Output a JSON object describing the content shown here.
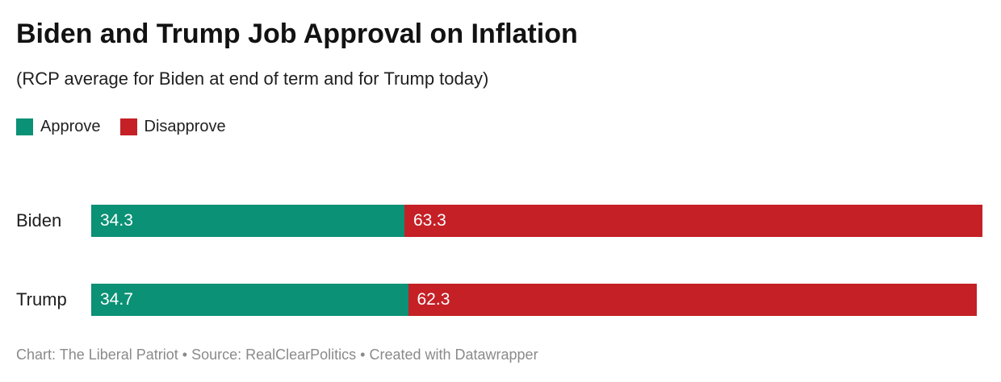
{
  "header": {
    "title": "Biden and Trump Job Approval on Inflation",
    "subtitle": "(RCP average for Biden at end of term and for Trump today)"
  },
  "legend": [
    {
      "label": "Approve",
      "color": "#0b9175"
    },
    {
      "label": "Disapprove",
      "color": "#c42026"
    }
  ],
  "chart_data": {
    "type": "bar",
    "orientation": "horizontal",
    "stacked": true,
    "title": "Biden and Trump Job Approval on Inflation",
    "subtitle": "(RCP average for Biden at end of term and for Trump today)",
    "categories": [
      "Biden",
      "Trump"
    ],
    "series": [
      {
        "name": "Approve",
        "color": "#0b9175",
        "values": [
          34.3,
          34.7
        ]
      },
      {
        "name": "Disapprove",
        "color": "#c42026",
        "values": [
          63.3,
          62.3
        ]
      }
    ],
    "xlim": [
      0,
      97.6
    ],
    "xlabel": "",
    "ylabel": "",
    "grid": false,
    "axis_visible": false,
    "value_labels": "inside-start",
    "value_label_color": "#ffffff",
    "legend_position": "top-left"
  },
  "footer": {
    "text": "Chart: The Liberal Patriot • Source: RealClearPolitics • Created with Datawrapper"
  }
}
